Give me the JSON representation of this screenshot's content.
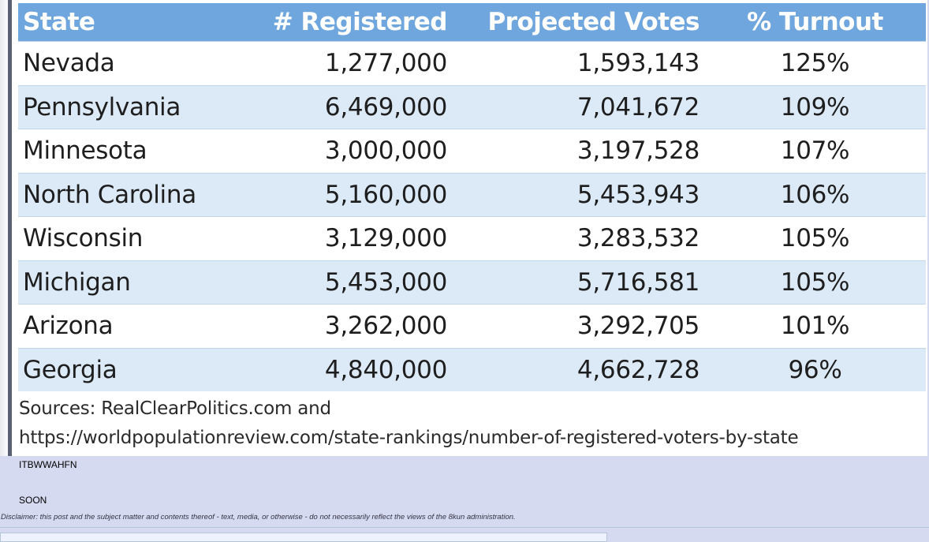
{
  "table": {
    "headers": [
      "State",
      "# Registered",
      "Projected Votes",
      "% Turnout"
    ],
    "rows": [
      [
        "Nevada",
        "1,277,000",
        "1,593,143",
        "125%"
      ],
      [
        "Pennsylvania",
        "6,469,000",
        "7,041,672",
        "109%"
      ],
      [
        "Minnesota",
        "3,000,000",
        "3,197,528",
        "107%"
      ],
      [
        "North Carolina",
        "5,160,000",
        "5,453,943",
        "106%"
      ],
      [
        "Wisconsin",
        "3,129,000",
        "3,283,532",
        "105%"
      ],
      [
        "Michigan",
        "5,453,000",
        "5,716,581",
        "105%"
      ],
      [
        "Arizona",
        "3,262,000",
        "3,292,705",
        "101%"
      ],
      [
        "Georgia",
        "4,840,000",
        "4,662,728",
        "96%"
      ]
    ]
  },
  "sources": {
    "line1": "Sources: RealClearPolitics.com and",
    "line2": "https://worldpopulationreview.com/state-rankings/number-of-registered-voters-by-state"
  },
  "post": {
    "lines": [
      "ITBWWAHFN",
      "SOON"
    ],
    "disclaimer": "Disclaimer: this post and the subject matter and contents thereof - text, media, or otherwise - do not necessarily reflect the views of the 8kun administration."
  },
  "colors": {
    "page_background": "#d6daf0",
    "header_blue": "#6fa6dd",
    "row_stripe": "#dce9f6"
  }
}
